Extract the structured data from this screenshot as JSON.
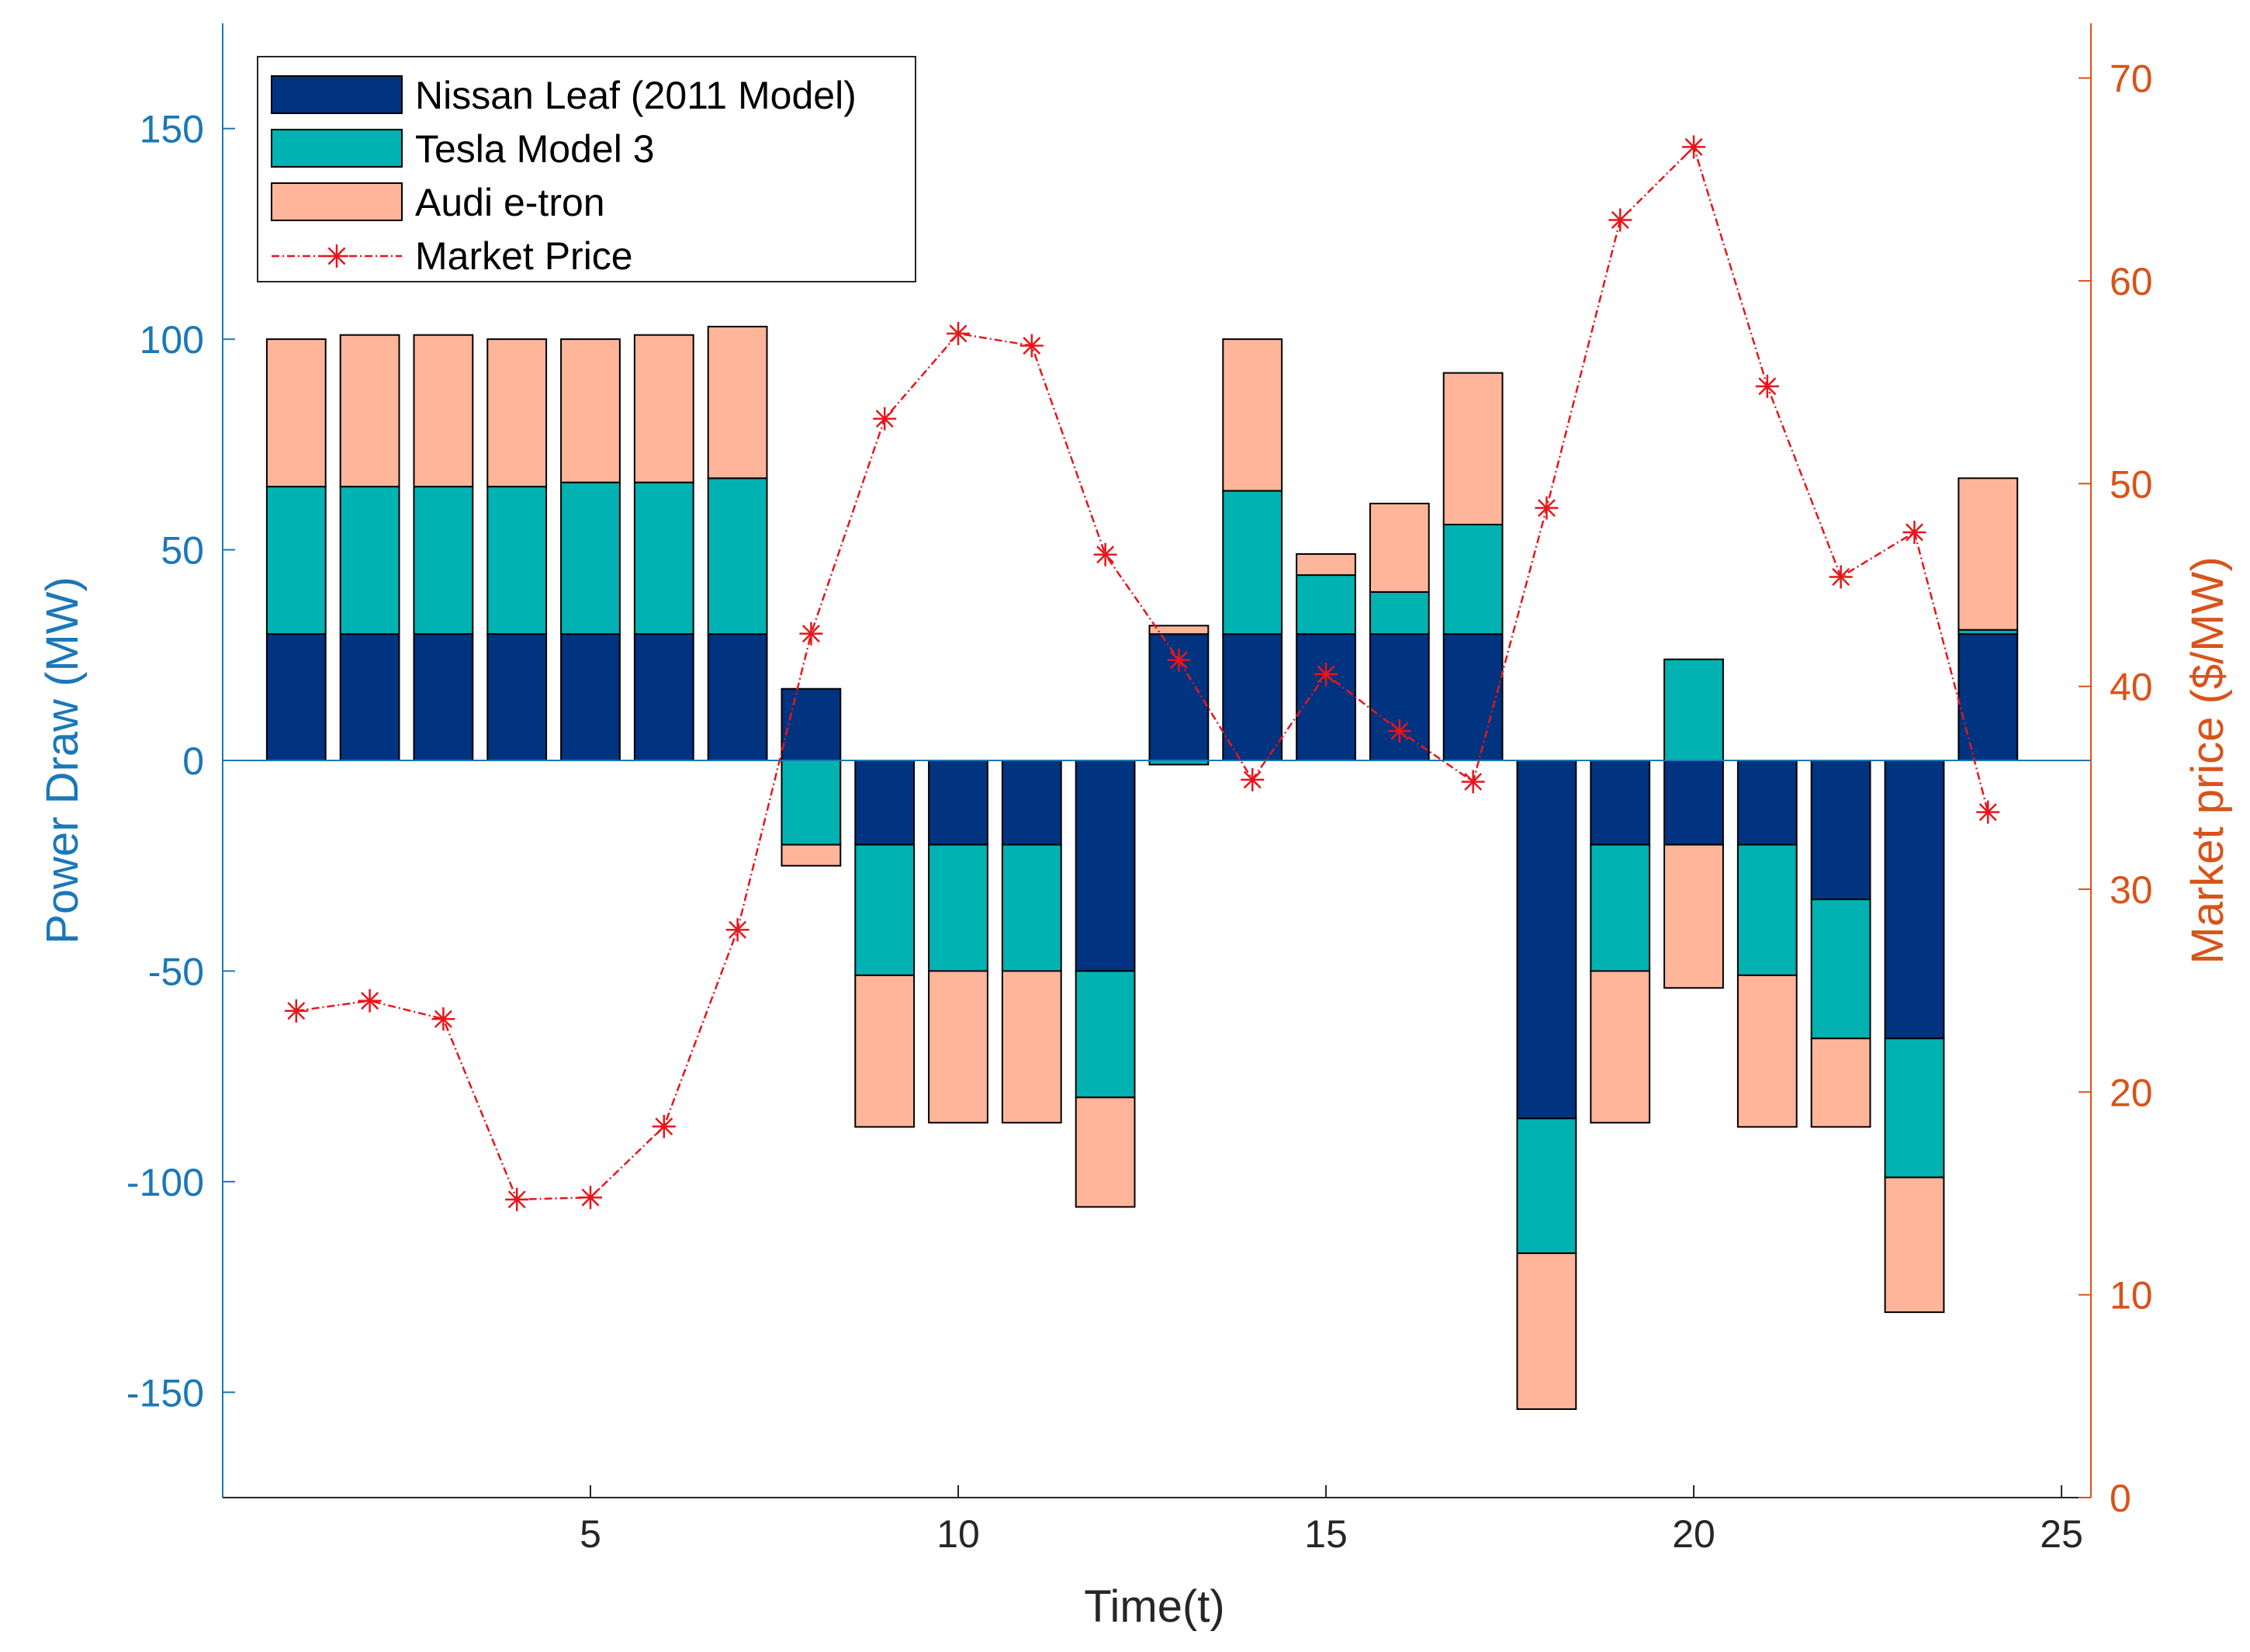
{
  "chart_data": {
    "type": "bar",
    "subtype": "stacked-bar-with-line",
    "title": "",
    "xlabel": "Time(t)",
    "ylabel_left": "Power Draw (MW)",
    "ylabel_right": "Market price ($/MW)",
    "xlim": [
      0,
      25.4
    ],
    "ylim_left": [
      -175,
      175
    ],
    "ylim_right": [
      0,
      72.7
    ],
    "xticks": [
      5,
      10,
      15,
      20,
      25
    ],
    "yticks_left": [
      -150,
      -100,
      -50,
      0,
      50,
      100,
      150
    ],
    "yticks_right": [
      0,
      10,
      20,
      30,
      40,
      50,
      60,
      70
    ],
    "legend_position": "top-left",
    "colors": {
      "nissan": "#003380",
      "tesla": "#00b2b2",
      "audi": "#ffb59a",
      "price": "#e8151b",
      "left_axis": "#1a78b8",
      "right_axis": "#d95319",
      "zero_line": "#1a78b8"
    },
    "x": [
      1,
      2,
      3,
      4,
      5,
      6,
      7,
      8,
      9,
      10,
      11,
      12,
      13,
      14,
      15,
      16,
      17,
      18,
      19,
      20,
      21,
      22,
      23,
      24
    ],
    "series": [
      {
        "name": "Nissan Leaf (2011 Model)",
        "values": [
          30,
          30,
          30,
          30,
          30,
          30,
          30,
          17,
          -20,
          -20,
          -20,
          -50,
          30,
          30,
          30,
          30,
          30,
          -85,
          -20,
          -20,
          -20,
          -33,
          -66,
          30
        ]
      },
      {
        "name": "Tesla Model 3",
        "values": [
          35,
          35,
          35,
          35,
          36,
          36,
          37,
          -20,
          -31,
          -30,
          -30,
          -30,
          -1,
          34,
          14,
          10,
          26,
          -32,
          -30,
          24,
          -31,
          -33,
          -33,
          1
        ]
      },
      {
        "name": "Audi e-tron",
        "values": [
          35,
          36,
          36,
          35,
          34,
          35,
          36,
          -5,
          -36,
          -36,
          -36,
          -26,
          2,
          36,
          5,
          21,
          36,
          -37,
          -36,
          -34,
          -36,
          -21,
          -32,
          36
        ]
      },
      {
        "name": "Market Price",
        "axis": "right",
        "values": [
          24.0,
          24.5,
          23.6,
          14.7,
          14.8,
          18.3,
          28.0,
          42.6,
          53.2,
          57.4,
          56.8,
          46.5,
          41.3,
          35.4,
          40.6,
          37.8,
          35.3,
          48.8,
          63.0,
          66.6,
          54.8,
          45.4,
          47.6,
          33.8
        ]
      }
    ]
  }
}
